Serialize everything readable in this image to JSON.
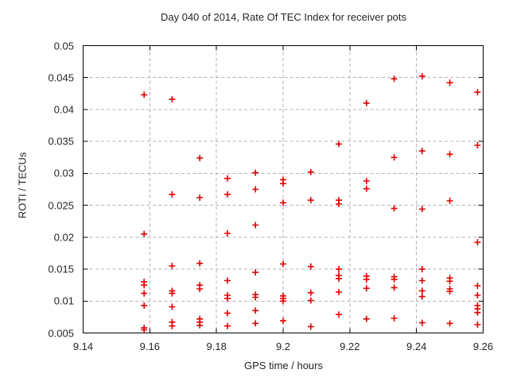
{
  "colors": {
    "marker": "#e10000",
    "grid": "#b3b3b3",
    "axis": "#000000"
  },
  "chart_data": {
    "type": "scatter",
    "title": "Day 040 of 2014, Rate Of TEC Index for receiver pots",
    "xlabel": "GPS time / hours",
    "ylabel": "ROTI / TECUs",
    "xlim": [
      9.14,
      9.26
    ],
    "ylim": [
      0.005,
      0.05
    ],
    "grid": true,
    "legend": "none",
    "marker": "plus",
    "xticks": [
      {
        "value": 9.14,
        "label": "9.14"
      },
      {
        "value": 9.16,
        "label": "9.16"
      },
      {
        "value": 9.18,
        "label": "9.18"
      },
      {
        "value": 9.2,
        "label": "9.2"
      },
      {
        "value": 9.22,
        "label": "9.22"
      },
      {
        "value": 9.24,
        "label": "9.24"
      },
      {
        "value": 9.26,
        "label": "9.26"
      }
    ],
    "yticks": [
      {
        "value": 0.005,
        "label": "0.005"
      },
      {
        "value": 0.01,
        "label": "0.01"
      },
      {
        "value": 0.015,
        "label": "0.015"
      },
      {
        "value": 0.02,
        "label": "0.02"
      },
      {
        "value": 0.025,
        "label": "0.025"
      },
      {
        "value": 0.03,
        "label": "0.03"
      },
      {
        "value": 0.035,
        "label": "0.035"
      },
      {
        "value": 0.04,
        "label": "0.04"
      },
      {
        "value": 0.045,
        "label": "0.045"
      },
      {
        "value": 0.05,
        "label": "0.05"
      }
    ],
    "points": [
      [
        9.1583,
        0.0423
      ],
      [
        9.1583,
        0.0205
      ],
      [
        9.1583,
        0.013
      ],
      [
        9.1583,
        0.0125
      ],
      [
        9.1583,
        0.0112
      ],
      [
        9.1583,
        0.0093
      ],
      [
        9.1583,
        0.0058
      ],
      [
        9.1583,
        0.0055
      ],
      [
        9.1667,
        0.0416
      ],
      [
        9.1667,
        0.0267
      ],
      [
        9.1667,
        0.0155
      ],
      [
        9.1667,
        0.0116
      ],
      [
        9.1667,
        0.0112
      ],
      [
        9.1667,
        0.0091
      ],
      [
        9.1667,
        0.0067
      ],
      [
        9.1667,
        0.0061
      ],
      [
        9.175,
        0.0324
      ],
      [
        9.175,
        0.0262
      ],
      [
        9.175,
        0.0159
      ],
      [
        9.175,
        0.0125
      ],
      [
        9.175,
        0.0119
      ],
      [
        9.175,
        0.0072
      ],
      [
        9.175,
        0.0067
      ],
      [
        9.175,
        0.0062
      ],
      [
        9.1833,
        0.0292
      ],
      [
        9.1833,
        0.0267
      ],
      [
        9.1833,
        0.0206
      ],
      [
        9.1833,
        0.0132
      ],
      [
        9.1833,
        0.0109
      ],
      [
        9.1833,
        0.0104
      ],
      [
        9.1833,
        0.0081
      ],
      [
        9.1833,
        0.0061
      ],
      [
        9.1917,
        0.0301
      ],
      [
        9.1917,
        0.0275
      ],
      [
        9.1917,
        0.0219
      ],
      [
        9.1917,
        0.0145
      ],
      [
        9.1917,
        0.011
      ],
      [
        9.1917,
        0.0106
      ],
      [
        9.1917,
        0.0085
      ],
      [
        9.1917,
        0.0065
      ],
      [
        9.2,
        0.029
      ],
      [
        9.2,
        0.0284
      ],
      [
        9.2,
        0.0254
      ],
      [
        9.2,
        0.0158
      ],
      [
        9.2,
        0.0108
      ],
      [
        9.2,
        0.0104
      ],
      [
        9.2,
        0.01
      ],
      [
        9.2,
        0.0069
      ],
      [
        9.2083,
        0.0302
      ],
      [
        9.2083,
        0.0258
      ],
      [
        9.2083,
        0.0154
      ],
      [
        9.2083,
        0.0113
      ],
      [
        9.2083,
        0.0101
      ],
      [
        9.2083,
        0.006
      ],
      [
        9.2167,
        0.0346
      ],
      [
        9.2167,
        0.0258
      ],
      [
        9.2167,
        0.0252
      ],
      [
        9.2167,
        0.015
      ],
      [
        9.2167,
        0.014
      ],
      [
        9.2167,
        0.0135
      ],
      [
        9.2167,
        0.0114
      ],
      [
        9.2167,
        0.0079
      ],
      [
        9.225,
        0.041
      ],
      [
        9.225,
        0.0288
      ],
      [
        9.225,
        0.0276
      ],
      [
        9.225,
        0.0139
      ],
      [
        9.225,
        0.0134
      ],
      [
        9.225,
        0.012
      ],
      [
        9.225,
        0.0072
      ],
      [
        9.2333,
        0.0448
      ],
      [
        9.2333,
        0.0325
      ],
      [
        9.2333,
        0.0245
      ],
      [
        9.2333,
        0.0138
      ],
      [
        9.2333,
        0.0134
      ],
      [
        9.2333,
        0.0121
      ],
      [
        9.2333,
        0.0073
      ],
      [
        9.2417,
        0.0452
      ],
      [
        9.2417,
        0.0335
      ],
      [
        9.2417,
        0.0244
      ],
      [
        9.2417,
        0.015
      ],
      [
        9.2417,
        0.0132
      ],
      [
        9.2417,
        0.0116
      ],
      [
        9.2417,
        0.0107
      ],
      [
        9.2417,
        0.0066
      ],
      [
        9.25,
        0.0442
      ],
      [
        9.25,
        0.033
      ],
      [
        9.25,
        0.0257
      ],
      [
        9.25,
        0.0136
      ],
      [
        9.25,
        0.0131
      ],
      [
        9.25,
        0.0119
      ],
      [
        9.25,
        0.0115
      ],
      [
        9.25,
        0.0065
      ],
      [
        9.2583,
        0.0427
      ],
      [
        9.2583,
        0.0344
      ],
      [
        9.2583,
        0.0192
      ],
      [
        9.2583,
        0.0124
      ],
      [
        9.2583,
        0.0109
      ],
      [
        9.2583,
        0.0093
      ],
      [
        9.2583,
        0.0088
      ],
      [
        9.2583,
        0.0082
      ],
      [
        9.2583,
        0.0063
      ]
    ]
  }
}
